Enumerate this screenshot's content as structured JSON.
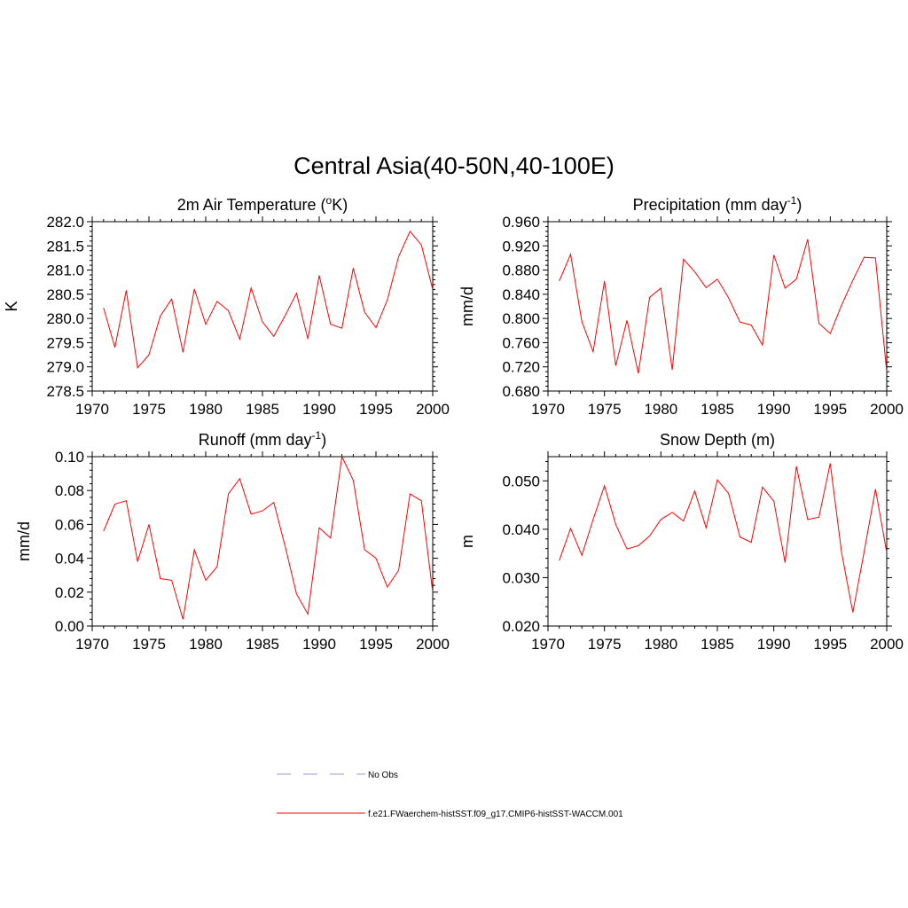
{
  "figure": {
    "title": "Central Asia(40-50N,40-100E)",
    "line_color": "#ff0000",
    "obs_line_color": "#9999dd"
  },
  "legend": {
    "obs_label": "No Obs",
    "model_label": "f.e21.FWaerchem-histSST.f09_g17.CMIP6-histSST-WACCM.001"
  },
  "chart_data": [
    {
      "type": "line",
      "title": "2m Air Temperature (",
      "title_sup": "o",
      "title_after": "K)",
      "ylabel": "K",
      "xlim": [
        1970,
        2000
      ],
      "ylim": [
        278.5,
        282.0
      ],
      "xticks": [
        1970,
        1975,
        1980,
        1985,
        1990,
        1995,
        2000
      ],
      "yticks": [
        "278.5",
        "279.0",
        "279.5",
        "280.0",
        "280.5",
        "281.0",
        "281.5",
        "282.0"
      ],
      "x": [
        1971,
        1972,
        1973,
        1974,
        1975,
        1976,
        1977,
        1978,
        1979,
        1980,
        1981,
        1982,
        1983,
        1984,
        1985,
        1986,
        1987,
        1988,
        1989,
        1990,
        1991,
        1992,
        1993,
        1994,
        1995,
        1996,
        1997,
        1998,
        1999,
        2000
      ],
      "y": [
        280.22,
        279.4,
        280.58,
        278.98,
        279.25,
        280.05,
        280.4,
        279.3,
        280.61,
        279.88,
        280.35,
        280.16,
        279.57,
        280.63,
        279.93,
        279.63,
        280.06,
        280.52,
        279.58,
        280.89,
        279.88,
        279.8,
        281.04,
        280.13,
        279.81,
        280.38,
        281.28,
        281.8,
        281.52,
        280.6
      ]
    },
    {
      "type": "line",
      "title": "Precipitation (mm day",
      "title_sup": "-1",
      "title_after": ")",
      "ylabel": "mm/d",
      "xlim": [
        1970,
        2000
      ],
      "ylim": [
        0.68,
        0.96
      ],
      "xticks": [
        1970,
        1975,
        1980,
        1985,
        1990,
        1995,
        2000
      ],
      "yticks": [
        "0.680",
        "0.720",
        "0.760",
        "0.800",
        "0.840",
        "0.880",
        "0.920",
        "0.960"
      ],
      "x": [
        1971,
        1972,
        1973,
        1974,
        1975,
        1976,
        1977,
        1978,
        1979,
        1980,
        1981,
        1982,
        1983,
        1984,
        1985,
        1986,
        1987,
        1988,
        1989,
        1990,
        1991,
        1992,
        1993,
        1994,
        1995,
        1996,
        1997,
        1998,
        1999,
        2000
      ],
      "y": [
        0.862,
        0.906,
        0.795,
        0.745,
        0.862,
        0.722,
        0.797,
        0.709,
        0.835,
        0.85,
        0.715,
        0.898,
        0.877,
        0.851,
        0.865,
        0.834,
        0.794,
        0.789,
        0.756,
        0.905,
        0.85,
        0.865,
        0.931,
        0.792,
        0.775,
        0.822,
        0.863,
        0.901,
        0.9,
        0.712
      ]
    },
    {
      "type": "line",
      "title": "Runoff (mm day",
      "title_sup": "-1",
      "title_after": ")",
      "ylabel": "mm/d",
      "xlim": [
        1970,
        2000
      ],
      "ylim": [
        0.0,
        0.1
      ],
      "xticks": [
        1970,
        1975,
        1980,
        1985,
        1990,
        1995,
        2000
      ],
      "yticks": [
        "0.00",
        "0.02",
        "0.04",
        "0.06",
        "0.08",
        "0.10"
      ],
      "x": [
        1971,
        1972,
        1973,
        1974,
        1975,
        1976,
        1977,
        1978,
        1979,
        1980,
        1981,
        1982,
        1983,
        1984,
        1985,
        1986,
        1987,
        1988,
        1989,
        1990,
        1991,
        1992,
        1993,
        1994,
        1995,
        1996,
        1997,
        1998,
        1999,
        2000
      ],
      "y": [
        0.056,
        0.072,
        0.074,
        0.038,
        0.06,
        0.028,
        0.027,
        0.004,
        0.045,
        0.027,
        0.035,
        0.078,
        0.087,
        0.066,
        0.068,
        0.073,
        0.047,
        0.019,
        0.007,
        0.058,
        0.052,
        0.1,
        0.086,
        0.045,
        0.04,
        0.023,
        0.033,
        0.078,
        0.074,
        0.02
      ]
    },
    {
      "type": "line",
      "title": "Snow Depth (m)",
      "title_sup": "",
      "title_after": "",
      "ylabel": "m",
      "xlim": [
        1970,
        2000
      ],
      "ylim": [
        0.02,
        0.055
      ],
      "xticks": [
        1970,
        1975,
        1980,
        1985,
        1990,
        1995,
        2000
      ],
      "yticks": [
        "0.020",
        "0.030",
        "0.040",
        "0.050"
      ],
      "ytick_values": [
        0.02,
        0.03,
        0.04,
        0.05
      ],
      "x": [
        1971,
        1972,
        1973,
        1974,
        1975,
        1976,
        1977,
        1978,
        1979,
        1980,
        1981,
        1982,
        1983,
        1984,
        1985,
        1986,
        1987,
        1988,
        1989,
        1990,
        1991,
        1992,
        1993,
        1994,
        1995,
        1996,
        1997,
        1998,
        1999,
        2000
      ],
      "y": [
        0.0335,
        0.0402,
        0.0346,
        0.042,
        0.049,
        0.041,
        0.0359,
        0.0366,
        0.0386,
        0.042,
        0.0435,
        0.0417,
        0.0479,
        0.0403,
        0.0502,
        0.0474,
        0.0384,
        0.0373,
        0.0487,
        0.0458,
        0.0331,
        0.053,
        0.042,
        0.0425,
        0.0536,
        0.0352,
        0.0228,
        0.0353,
        0.0483,
        0.0352
      ]
    }
  ]
}
